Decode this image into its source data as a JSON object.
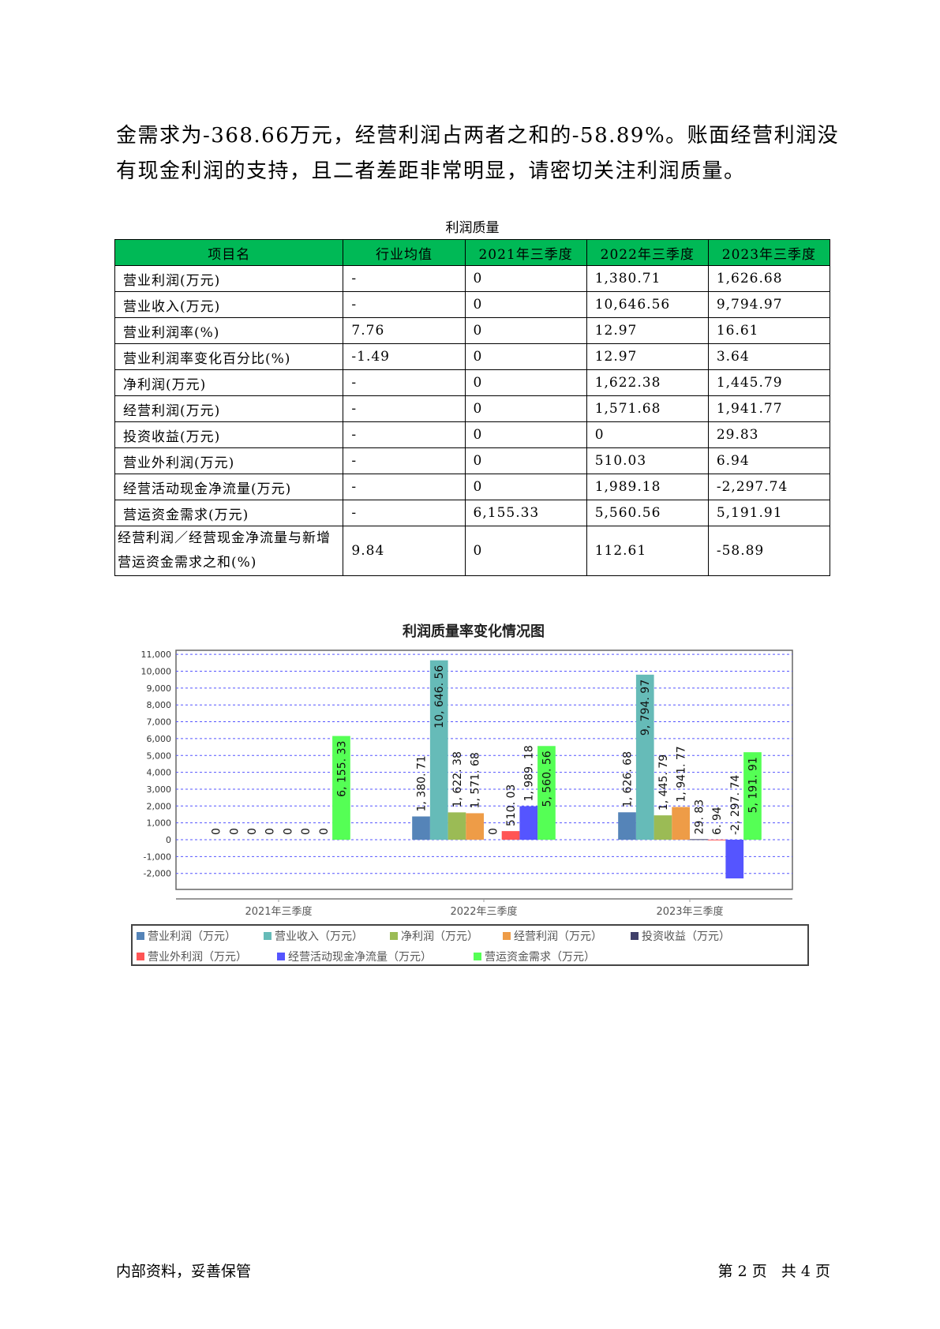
{
  "paragraph": {
    "lines": [
      "金需求为-368.66万元，经营利润占两者之和的-58.89%。账面经营利润没",
      "有现金利润的支持，且二者差距非常明显，请密切关注利润质量。"
    ]
  },
  "table": {
    "caption": "利润质量",
    "headers": [
      "项目名",
      "行业均值",
      "2021年三季度",
      "2022年三季度",
      "2023年三季度"
    ],
    "rows": [
      [
        "营业利润(万元)",
        "-",
        "0",
        "1,380.71",
        "1,626.68"
      ],
      [
        "营业收入(万元)",
        "-",
        "0",
        "10,646.56",
        "9,794.97"
      ],
      [
        "营业利润率(%)",
        "7.76",
        "0",
        "12.97",
        "16.61"
      ],
      [
        "营业利润率变化百分比(%)",
        "-1.49",
        "0",
        "12.97",
        "3.64"
      ],
      [
        "净利润(万元)",
        "-",
        "0",
        "1,622.38",
        "1,445.79"
      ],
      [
        "经营利润(万元)",
        "-",
        "0",
        "1,571.68",
        "1,941.77"
      ],
      [
        "投资收益(万元)",
        "-",
        "0",
        "0",
        "29.83"
      ],
      [
        "营业外利润(万元)",
        "-",
        "0",
        "510.03",
        "6.94"
      ],
      [
        "经营活动现金净流量(万元)",
        "-",
        "0",
        "1,989.18",
        "-2,297.74"
      ],
      [
        "营运资金需求(万元)",
        "-",
        "6,155.33",
        "5,560.56",
        "5,191.91"
      ],
      [
        "经营利润／经营现金净流量与新增营运资金需求之和(%)",
        "9.84",
        "0",
        "112.61",
        "-58.89"
      ]
    ],
    "header_color": "#00b956"
  },
  "chart_data": {
    "type": "bar",
    "title": "利润质量率变化情况图",
    "categories": [
      "2021年三季度",
      "2022年三季度",
      "2023年三季度"
    ],
    "series": [
      {
        "name": "营业利润（万元）",
        "color": "#5584b8",
        "values": [
          0,
          1380.71,
          1626.68
        ],
        "labels": [
          "0",
          "1, 380. 71",
          "1, 626. 68"
        ]
      },
      {
        "name": "营业收入（万元）",
        "color": "#66bbb8",
        "values": [
          0,
          10646.56,
          9794.97
        ],
        "labels": [
          "0",
          "10, 646. 56",
          "9, 794. 97"
        ]
      },
      {
        "name": "净利润（万元）",
        "color": "#9bbb55",
        "values": [
          0,
          1622.38,
          1445.79
        ],
        "labels": [
          "0",
          "1, 622. 38",
          "1, 445. 79"
        ]
      },
      {
        "name": "经营利润（万元）",
        "color": "#ee9c47",
        "values": [
          0,
          1571.68,
          1941.77
        ],
        "labels": [
          "0",
          "1, 571. 68",
          "1, 941. 77"
        ]
      },
      {
        "name": "投资收益（万元）",
        "color": "#3f3f6a",
        "values": [
          0,
          0,
          29.83
        ],
        "labels": [
          "0",
          "0",
          "29. 83"
        ]
      },
      {
        "name": "营业外利润（万元）",
        "color": "#ff5555",
        "values": [
          0,
          510.03,
          6.94
        ],
        "labels": [
          "0",
          "510. 03",
          "6. 94"
        ]
      },
      {
        "name": "经营活动现金净流量（万元）",
        "color": "#5555ff",
        "values": [
          0,
          1989.18,
          -2297.74
        ],
        "labels": [
          "0",
          "1, 989. 18",
          "-2, 297. 74"
        ]
      },
      {
        "name": "营运资金需求（万元）",
        "color": "#55ff55",
        "values": [
          6155.33,
          5560.56,
          5191.91
        ],
        "labels": [
          "6, 155. 33",
          "5, 560. 56",
          "5, 191. 91"
        ]
      }
    ],
    "yticks": [
      "11,000",
      "10,000",
      "9,000",
      "8,000",
      "7,000",
      "6,000",
      "5,000",
      "4,000",
      "3,000",
      "2,000",
      "1,000",
      "0",
      "-1,000",
      "-2,000"
    ],
    "ylim": [
      -2600,
      11300
    ],
    "grid": true,
    "legend": "bottom"
  },
  "footer": {
    "left": "内部资料，妥善保管",
    "right": "第 2 页   共 4 页"
  }
}
